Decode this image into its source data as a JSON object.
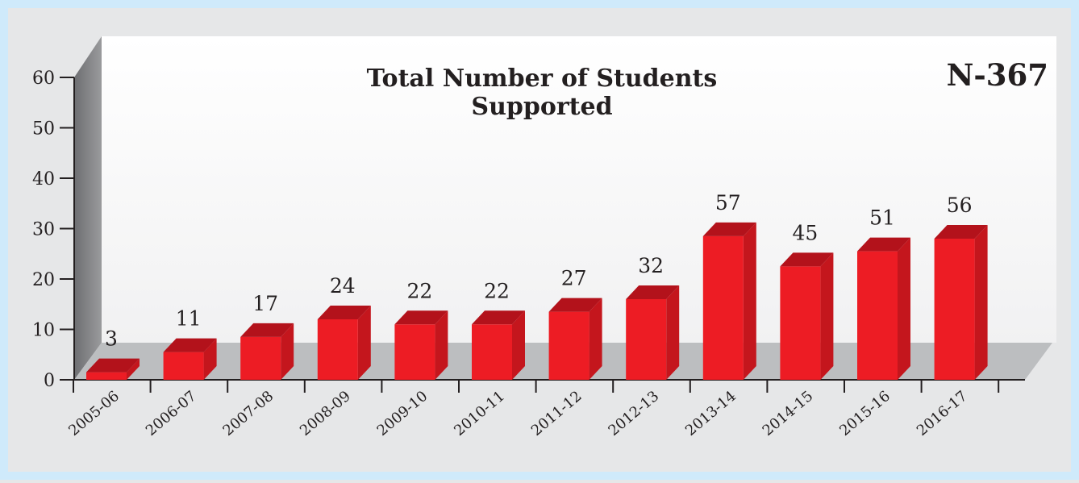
{
  "chart_data": {
    "type": "bar",
    "title": "Total Number of Students Supported",
    "annotation": "N-367",
    "categories": [
      "2005-06",
      "2006-07",
      "2007-08",
      "2008-09",
      "2009-10",
      "2010-11",
      "2011-12",
      "2012-13",
      "2013-14",
      "2014-15",
      "2015-16",
      "2016-17"
    ],
    "values": [
      3,
      11,
      17,
      24,
      22,
      22,
      27,
      32,
      57,
      45,
      51,
      56
    ],
    "yticks": [
      "0",
      "10",
      "20",
      "30",
      "40",
      "50",
      "60"
    ],
    "ylim": [
      0,
      60
    ],
    "grid": false,
    "legend": "none",
    "style": "3d",
    "colors": {
      "bar_front": "#ed1c24",
      "bar_top": "#b3121b",
      "bar_side": "#c4161d",
      "floor": "#bcbec0",
      "wall_side": "#808285"
    }
  }
}
